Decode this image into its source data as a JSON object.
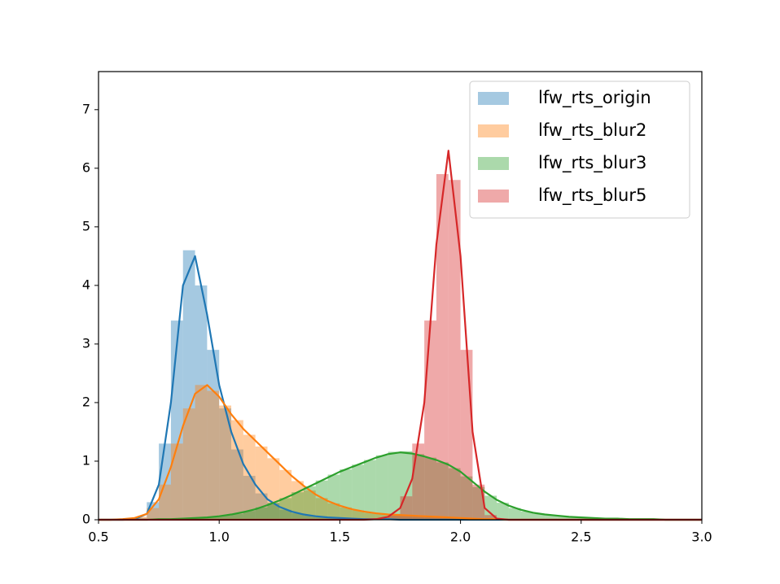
{
  "chart_data": {
    "type": "histogram",
    "xlim": [
      0.5,
      3.0
    ],
    "ylim": [
      0,
      7.65
    ],
    "xticks": [
      0.5,
      {
        "value": 1.0,
        "label": "1.0"
      },
      1.5,
      {
        "value": 2.0,
        "label": "2.0"
      },
      2.5,
      {
        "value": 3.0,
        "label": "3.0"
      }
    ],
    "yticks": [
      0,
      1,
      2,
      3,
      4,
      5,
      6,
      7
    ],
    "legend": "upper right",
    "x": [
      0.5,
      0.55,
      0.6,
      0.65,
      0.7,
      0.75,
      0.8,
      0.85,
      0.9,
      0.95,
      1.0,
      1.05,
      1.1,
      1.15,
      1.2,
      1.25,
      1.3,
      1.35,
      1.4,
      1.45,
      1.5,
      1.55,
      1.6,
      1.65,
      1.7,
      1.75,
      1.8,
      1.85,
      1.9,
      1.95,
      2.0,
      2.05,
      2.1,
      2.15,
      2.2,
      2.25,
      2.3,
      2.35,
      2.4,
      2.45,
      2.5,
      2.55,
      2.6,
      2.65,
      2.7,
      2.75,
      2.8,
      2.85,
      2.9,
      2.95,
      3.0
    ],
    "series": [
      {
        "name": "lfw_rts_origin",
        "color": "#1f77b4",
        "kde": [
          0,
          0,
          0,
          0.01,
          0.1,
          0.6,
          2.0,
          4.0,
          4.5,
          3.5,
          2.3,
          1.5,
          0.95,
          0.6,
          0.35,
          0.22,
          0.14,
          0.09,
          0.06,
          0.04,
          0.03,
          0.02,
          0.01,
          0.01,
          0.01,
          0,
          0,
          0,
          0,
          0,
          0,
          0,
          0,
          0,
          0,
          0,
          0,
          0,
          0,
          0,
          0,
          0,
          0,
          0,
          0,
          0,
          0,
          0,
          0,
          0,
          0
        ],
        "bins": [
          0.65,
          0.7,
          0.75,
          0.8,
          0.85,
          0.9,
          0.95,
          1.0,
          1.05,
          1.1,
          1.15,
          1.2,
          1.25,
          1.3,
          1.35,
          1.4,
          1.45,
          1.5,
          1.55,
          1.6
        ],
        "counts": [
          0.03,
          0.3,
          1.3,
          3.4,
          4.6,
          4.0,
          2.9,
          1.9,
          1.2,
          0.75,
          0.45,
          0.28,
          0.17,
          0.11,
          0.07,
          0.05,
          0.04,
          0.03,
          0.02
        ]
      },
      {
        "name": "lfw_rts_blur2",
        "color": "#ff7f0e",
        "kde": [
          0,
          0,
          0.01,
          0.03,
          0.1,
          0.35,
          0.9,
          1.6,
          2.15,
          2.3,
          2.1,
          1.8,
          1.55,
          1.35,
          1.15,
          0.95,
          0.75,
          0.58,
          0.43,
          0.32,
          0.24,
          0.18,
          0.14,
          0.11,
          0.09,
          0.08,
          0.07,
          0.06,
          0.05,
          0.04,
          0.03,
          0.02,
          0.01,
          0.01,
          0,
          0,
          0,
          0,
          0,
          0,
          0,
          0,
          0,
          0,
          0,
          0,
          0,
          0,
          0,
          0,
          0
        ],
        "bins": [
          0.65,
          0.7,
          0.75,
          0.8,
          0.85,
          0.9,
          0.95,
          1.0,
          1.05,
          1.1,
          1.15,
          1.2,
          1.25,
          1.3,
          1.35,
          1.4,
          1.45,
          1.5,
          1.55,
          1.6,
          1.65,
          1.7,
          1.75,
          1.8,
          1.85,
          1.9,
          1.95,
          2.0,
          2.05,
          2.1,
          2.15
        ],
        "counts": [
          0.05,
          0.2,
          0.6,
          1.3,
          1.9,
          2.3,
          2.2,
          1.95,
          1.7,
          1.45,
          1.25,
          1.05,
          0.85,
          0.66,
          0.5,
          0.37,
          0.28,
          0.21,
          0.16,
          0.12,
          0.1,
          0.09,
          0.08,
          0.07,
          0.06,
          0.05,
          0.04,
          0.03,
          0.02,
          0.01
        ]
      },
      {
        "name": "lfw_rts_blur3",
        "color": "#2ca02c",
        "kde": [
          0,
          0,
          0,
          0,
          0,
          0.01,
          0.01,
          0.02,
          0.03,
          0.04,
          0.06,
          0.09,
          0.13,
          0.18,
          0.25,
          0.33,
          0.42,
          0.52,
          0.62,
          0.72,
          0.82,
          0.9,
          0.98,
          1.06,
          1.12,
          1.15,
          1.13,
          1.08,
          1.02,
          0.94,
          0.82,
          0.65,
          0.48,
          0.34,
          0.24,
          0.17,
          0.12,
          0.09,
          0.07,
          0.05,
          0.04,
          0.03,
          0.02,
          0.02,
          0.01,
          0.01,
          0.01,
          0,
          0,
          0,
          0
        ],
        "bins": [
          0.8,
          0.85,
          0.9,
          0.95,
          1.0,
          1.05,
          1.1,
          1.15,
          1.2,
          1.25,
          1.3,
          1.35,
          1.4,
          1.45,
          1.5,
          1.55,
          1.6,
          1.65,
          1.7,
          1.75,
          1.8,
          1.85,
          1.9,
          1.95,
          2.0,
          2.05,
          2.1,
          2.15,
          2.2,
          2.25,
          2.3,
          2.35,
          2.4,
          2.45,
          2.5,
          2.55,
          2.6,
          2.65,
          2.7,
          2.75,
          2.8
        ],
        "counts": [
          0.01,
          0.02,
          0.03,
          0.05,
          0.07,
          0.1,
          0.15,
          0.21,
          0.29,
          0.37,
          0.47,
          0.57,
          0.67,
          0.77,
          0.86,
          0.94,
          1.02,
          1.1,
          1.16,
          1.17,
          1.12,
          1.06,
          0.98,
          0.88,
          0.74,
          0.56,
          0.41,
          0.29,
          0.2,
          0.14,
          0.1,
          0.08,
          0.06,
          0.05,
          0.04,
          0.03,
          0.02,
          0.02,
          0.01,
          0.01
        ]
      },
      {
        "name": "lfw_rts_blur5",
        "color": "#d62728",
        "kde": [
          0,
          0,
          0,
          0,
          0,
          0,
          0,
          0,
          0,
          0,
          0,
          0,
          0,
          0,
          0,
          0,
          0,
          0,
          0,
          0,
          0,
          0,
          0,
          0.01,
          0.05,
          0.2,
          0.7,
          2.0,
          4.7,
          6.3,
          4.5,
          1.5,
          0.2,
          0.02,
          0,
          0,
          0,
          0,
          0,
          0,
          0,
          0,
          0,
          0,
          0,
          0,
          0,
          0,
          0,
          0,
          0
        ],
        "bins": [
          1.7,
          1.75,
          1.8,
          1.85,
          1.9,
          1.95,
          2.0,
          2.05,
          2.1,
          2.15,
          2.2
        ],
        "counts": [
          0.1,
          0.4,
          1.3,
          3.4,
          5.9,
          5.8,
          2.9,
          0.6,
          0.08,
          0.01
        ]
      }
    ]
  }
}
